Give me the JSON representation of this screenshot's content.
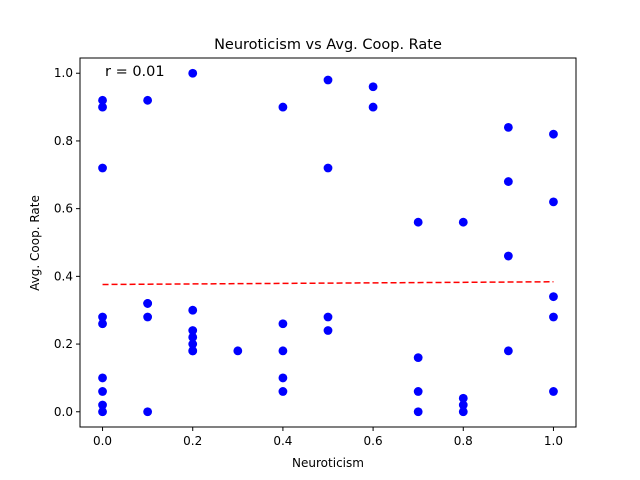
{
  "chart_data": {
    "type": "scatter",
    "title": "Neuroticism vs Avg. Coop. Rate",
    "xlabel": "Neuroticism",
    "ylabel": "Avg. Coop. Rate",
    "xlim": [
      -0.05,
      1.05
    ],
    "ylim": [
      -0.045,
      1.045
    ],
    "xticks": [
      0.0,
      0.2,
      0.4,
      0.6,
      0.8,
      1.0
    ],
    "xtick_labels": [
      "0.0",
      "0.2",
      "0.4",
      "0.6",
      "0.8",
      "1.0"
    ],
    "yticks": [
      0.0,
      0.2,
      0.4,
      0.6,
      0.8,
      1.0
    ],
    "ytick_labels": [
      "0.0",
      "0.2",
      "0.4",
      "0.6",
      "0.8",
      "1.0"
    ],
    "grid": false,
    "annotation": "r = 0.01",
    "points": {
      "color": "#0000ff",
      "x": [
        0.0,
        0.0,
        0.0,
        0.0,
        0.0,
        0.0,
        0.0,
        0.0,
        0.0,
        0.1,
        0.1,
        0.1,
        0.1,
        0.1,
        0.2,
        0.2,
        0.2,
        0.2,
        0.2,
        0.2,
        0.2,
        0.3,
        0.4,
        0.4,
        0.4,
        0.4,
        0.4,
        0.5,
        0.5,
        0.5,
        0.5,
        0.6,
        0.6,
        0.7,
        0.7,
        0.7,
        0.7,
        0.8,
        0.8,
        0.8,
        0.8,
        0.9,
        0.9,
        0.9,
        0.9,
        1.0,
        1.0,
        1.0,
        1.0,
        1.0
      ],
      "y": [
        0.92,
        0.9,
        0.72,
        0.28,
        0.26,
        0.1,
        0.06,
        0.02,
        0.0,
        0.92,
        0.32,
        0.32,
        0.28,
        0.0,
        1.0,
        0.3,
        0.24,
        0.22,
        0.2,
        0.18,
        0.18,
        0.18,
        0.9,
        0.26,
        0.18,
        0.1,
        0.06,
        0.98,
        0.72,
        0.28,
        0.24,
        0.96,
        0.9,
        0.56,
        0.16,
        0.06,
        0.0,
        0.56,
        0.04,
        0.02,
        0.0,
        0.84,
        0.68,
        0.46,
        0.18,
        0.82,
        0.62,
        0.34,
        0.28,
        0.06
      ]
    },
    "trend_line": {
      "color": "#ff0000",
      "style": "dashed",
      "x": [
        0.0,
        1.0
      ],
      "y": [
        0.376,
        0.384
      ]
    }
  }
}
